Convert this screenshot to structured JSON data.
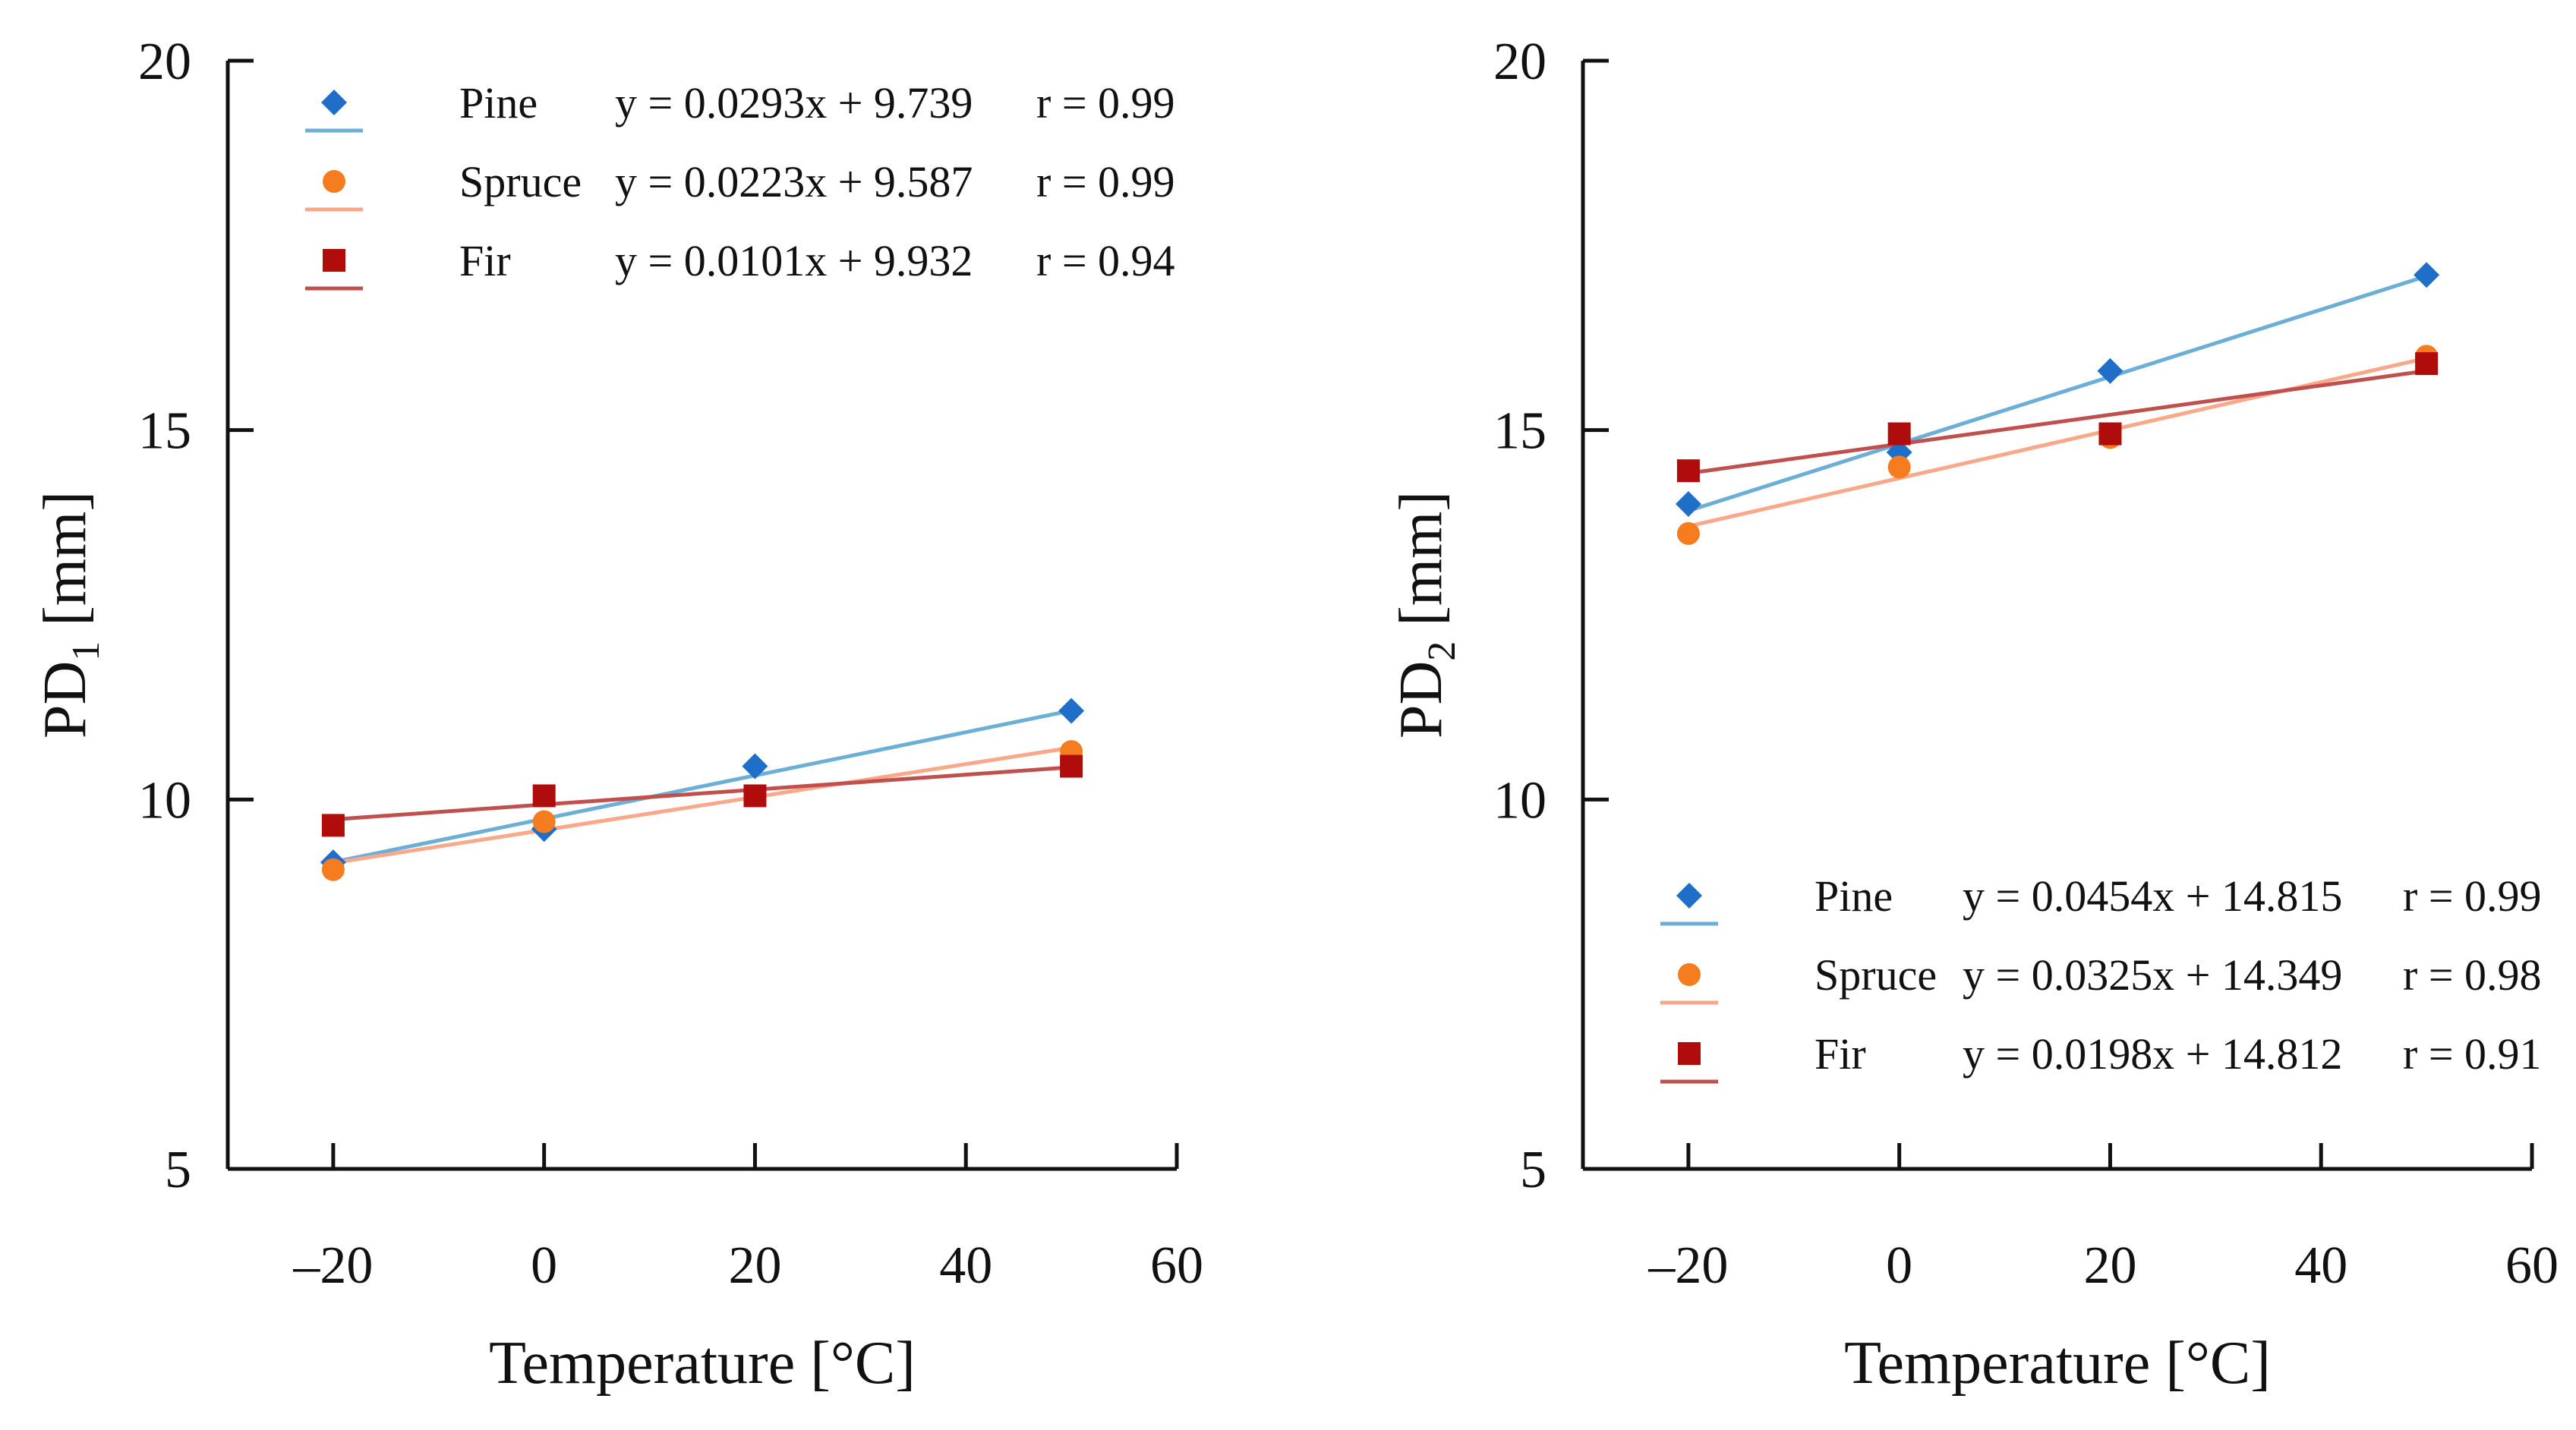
{
  "chart_data": [
    {
      "type": "scatter",
      "panel": "left",
      "xlabel": "Temperature [°C]",
      "ylabel_main": "PD",
      "ylabel_sub": "1",
      "ylabel_unit": " [mm]",
      "xlim": [
        -30,
        60
      ],
      "ylim": [
        5,
        20
      ],
      "x_ticks": [
        -20,
        0,
        20,
        40,
        60
      ],
      "x_tick_labels": [
        "–20",
        "0",
        "20",
        "40",
        "60"
      ],
      "y_ticks": [
        5,
        10,
        15,
        20
      ],
      "y_tick_labels": [
        "5",
        "10",
        "15",
        "20"
      ],
      "legend_position": "top-left",
      "series": [
        {
          "name": "Pine",
          "marker": "diamond",
          "marker_color": "#1f6fc9",
          "line_color": "#6baed6",
          "equation": "y = 0.0293x + 9.739",
          "r": "r = 0.99",
          "slope": 0.0293,
          "intercept": 9.739,
          "x": [
            -20,
            0,
            20,
            50
          ],
          "y": [
            9.15,
            9.6,
            10.45,
            11.2
          ]
        },
        {
          "name": "Spruce",
          "marker": "circle",
          "marker_color": "#f57c1f",
          "line_color": "#f9a98a",
          "equation": "y = 0.0223x + 9.587",
          "r": "r = 0.99",
          "slope": 0.0223,
          "intercept": 9.587,
          "x": [
            -20,
            0,
            20,
            50
          ],
          "y": [
            9.05,
            9.7,
            10.05,
            10.65
          ]
        },
        {
          "name": "Fir",
          "marker": "square",
          "marker_color": "#b00c0c",
          "line_color": "#c0504d",
          "equation": "y = 0.0101x + 9.932",
          "r": "r = 0.94",
          "slope": 0.0101,
          "intercept": 9.932,
          "x": [
            -20,
            0,
            20,
            50
          ],
          "y": [
            9.65,
            10.05,
            10.05,
            10.45
          ]
        }
      ]
    },
    {
      "type": "scatter",
      "panel": "right",
      "xlabel": "Temperature [°C]",
      "ylabel_main": "PD",
      "ylabel_sub": "2",
      "ylabel_unit": " [mm]",
      "xlim": [
        -30,
        60
      ],
      "ylim": [
        5,
        20
      ],
      "x_ticks": [
        -20,
        0,
        20,
        40,
        60
      ],
      "x_tick_labels": [
        "–20",
        "0",
        "20",
        "40",
        "60"
      ],
      "y_ticks": [
        5,
        10,
        15,
        20
      ],
      "y_tick_labels": [
        "5",
        "10",
        "15",
        "20"
      ],
      "legend_position": "bottom-right",
      "series": [
        {
          "name": "Pine",
          "marker": "diamond",
          "marker_color": "#1f6fc9",
          "line_color": "#6baed6",
          "equation": "y = 0.0454x + 14.815",
          "r": "r = 0.99",
          "slope": 0.0454,
          "intercept": 14.815,
          "x": [
            -20,
            0,
            20,
            50
          ],
          "y": [
            14.0,
            14.7,
            15.8,
            17.1
          ]
        },
        {
          "name": "Spruce",
          "marker": "circle",
          "marker_color": "#f57c1f",
          "line_color": "#f9a98a",
          "equation": "y = 0.0325x + 14.349",
          "r": "r = 0.98",
          "slope": 0.0325,
          "intercept": 14.349,
          "x": [
            -20,
            0,
            20,
            50
          ],
          "y": [
            13.6,
            14.5,
            14.9,
            16.0
          ]
        },
        {
          "name": "Fir",
          "marker": "square",
          "marker_color": "#b00c0c",
          "line_color": "#c0504d",
          "equation": "y = 0.0198x + 14.812",
          "r": "r = 0.91",
          "slope": 0.0198,
          "intercept": 14.812,
          "x": [
            -20,
            0,
            20,
            50
          ],
          "y": [
            14.45,
            14.95,
            14.95,
            15.9
          ]
        }
      ]
    }
  ]
}
